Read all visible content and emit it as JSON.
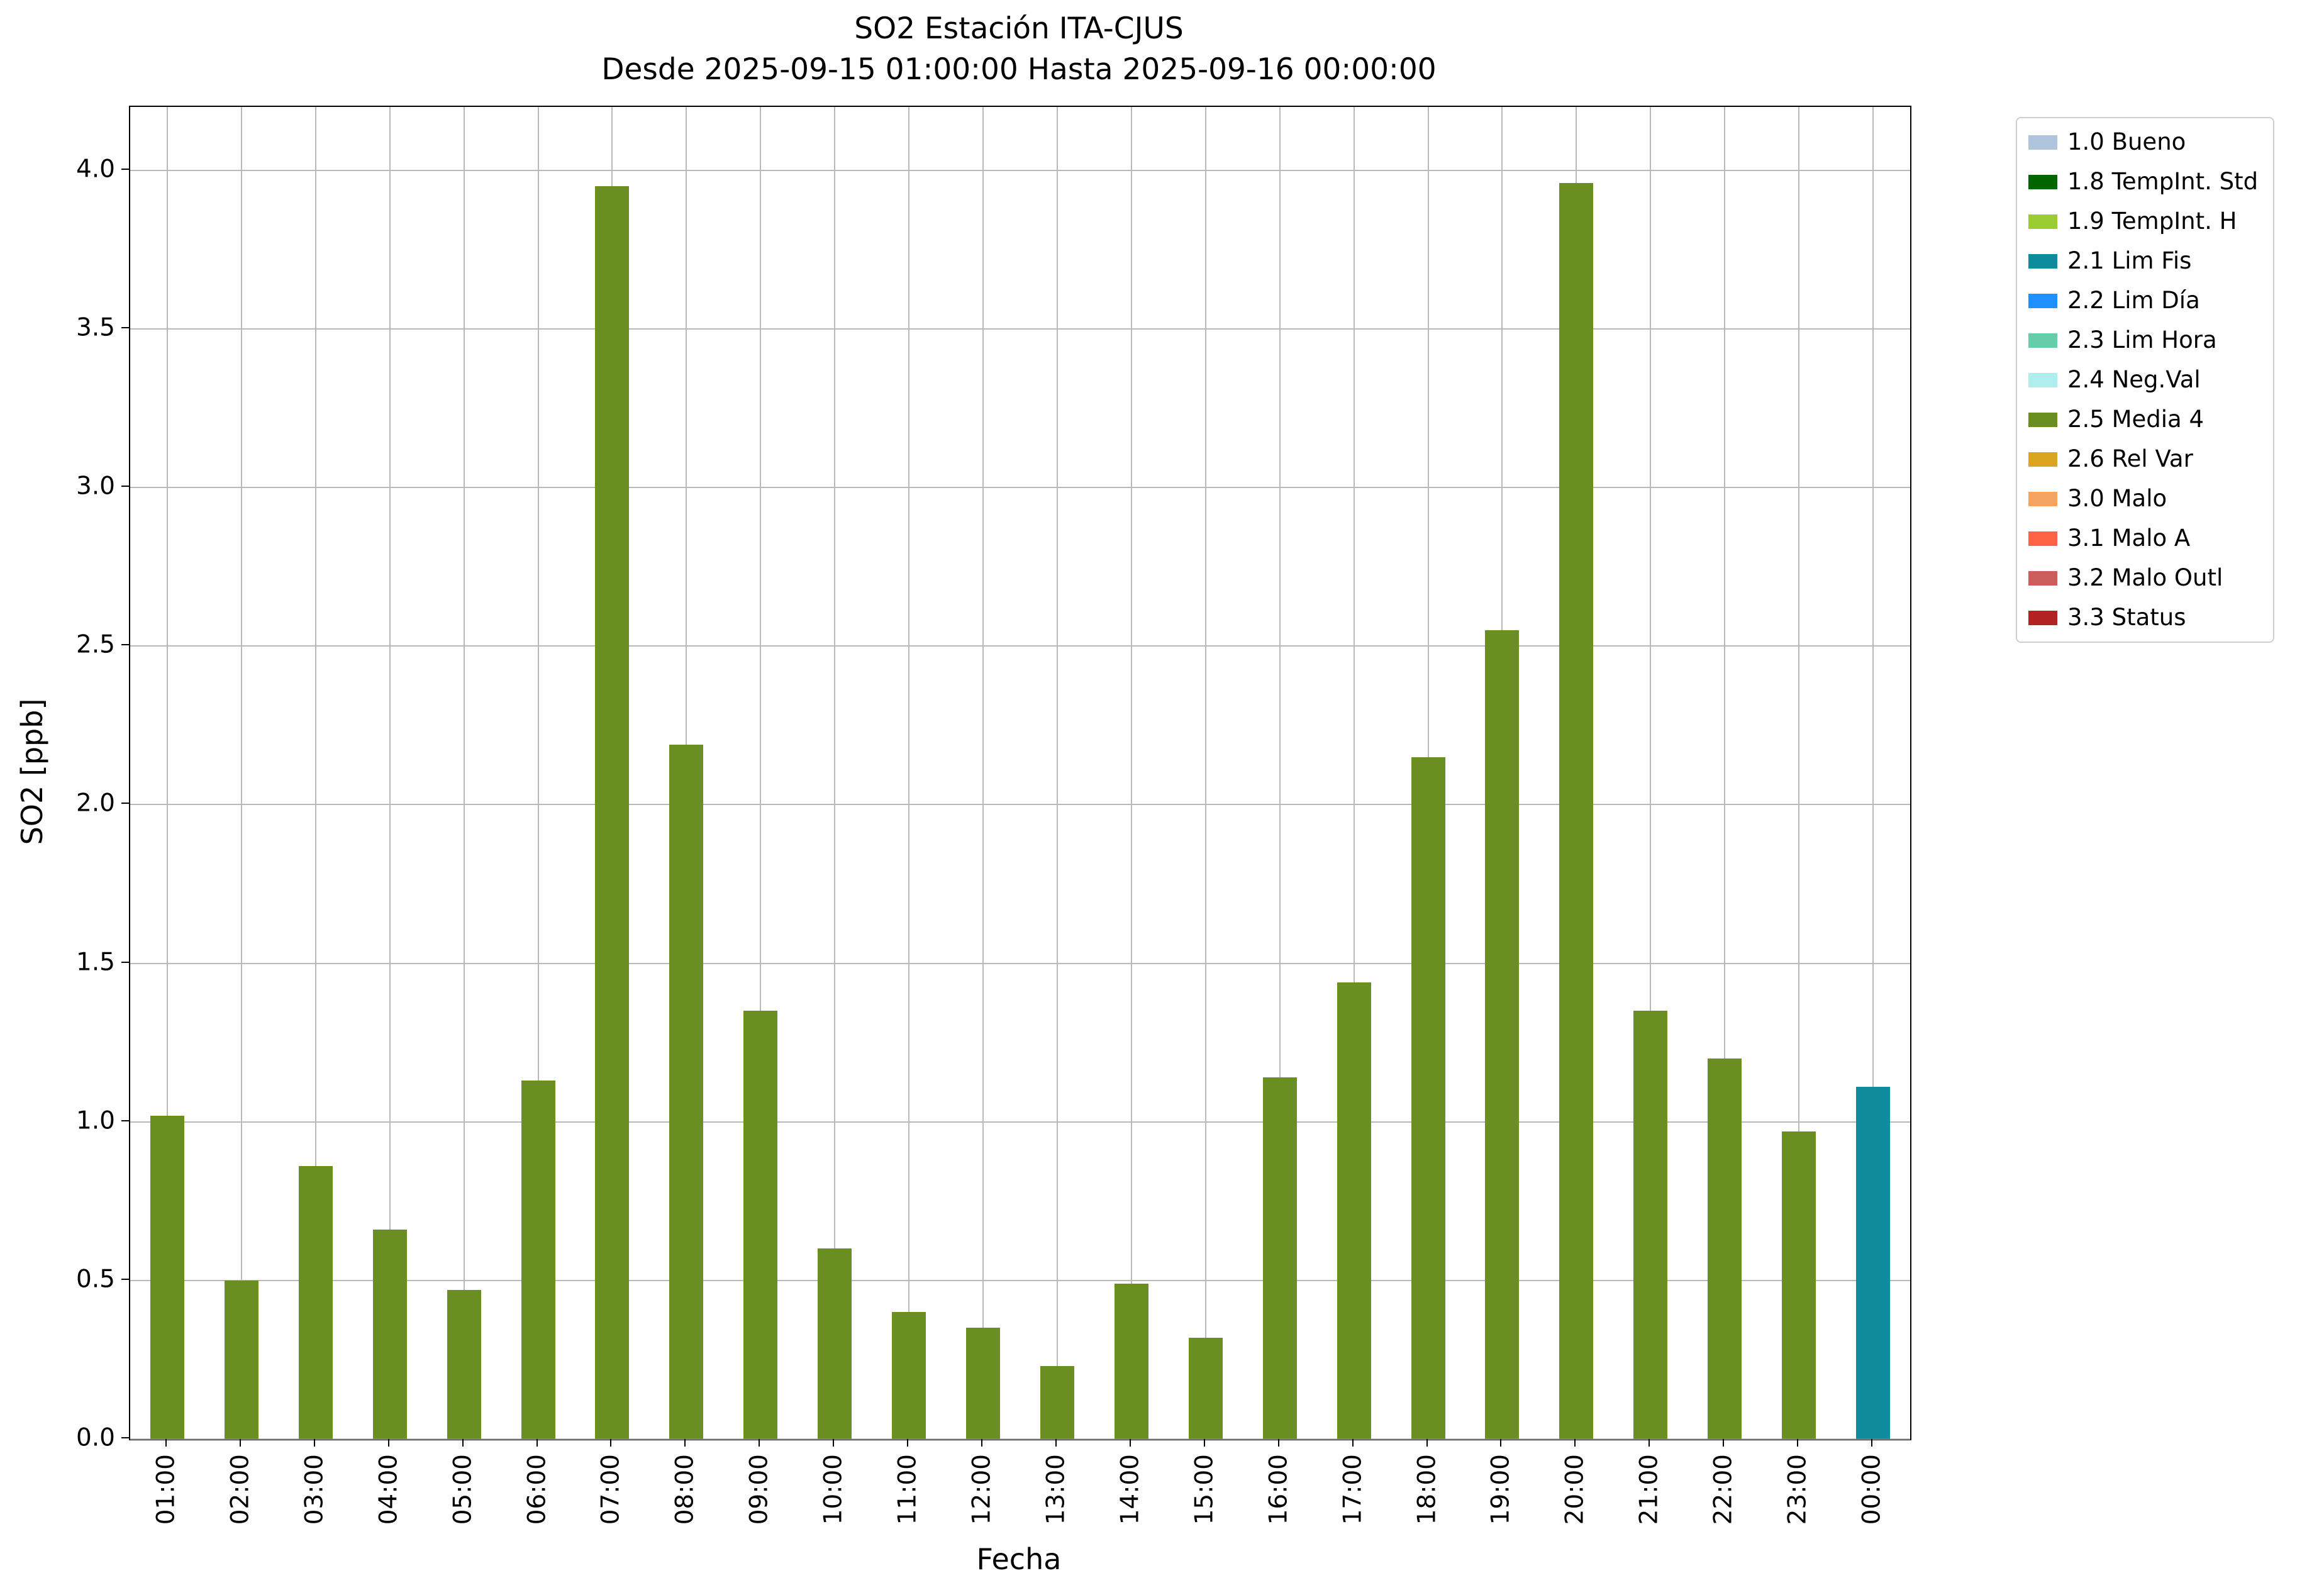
{
  "chart_data": {
    "type": "bar",
    "title": "SO2 Estación ITA-CJUS",
    "subtitle": "Desde 2025-09-15 01:00:00 Hasta 2025-09-16 00:00:00",
    "xlabel": "Fecha",
    "ylabel": "SO2 [ppb]",
    "ylim": [
      0,
      4.2
    ],
    "yticks": [
      0.0,
      0.5,
      1.0,
      1.5,
      2.0,
      2.5,
      3.0,
      3.5,
      4.0
    ],
    "grid": true,
    "grid_color": "#b9b9b9",
    "categories": [
      "01:00",
      "02:00",
      "03:00",
      "04:00",
      "05:00",
      "06:00",
      "07:00",
      "08:00",
      "09:00",
      "10:00",
      "11:00",
      "12:00",
      "13:00",
      "14:00",
      "15:00",
      "16:00",
      "17:00",
      "18:00",
      "19:00",
      "20:00",
      "21:00",
      "22:00",
      "23:00",
      "00:00"
    ],
    "values": [
      1.02,
      0.5,
      0.86,
      0.66,
      0.47,
      1.13,
      3.95,
      2.19,
      1.35,
      0.6,
      0.4,
      0.35,
      0.23,
      0.49,
      0.32,
      1.14,
      1.44,
      2.15,
      2.55,
      3.96,
      1.35,
      1.2,
      0.97,
      1.11
    ],
    "bar_status": [
      "2.5 Media 4",
      "2.5 Media 4",
      "2.5 Media 4",
      "2.5 Media 4",
      "2.5 Media 4",
      "2.5 Media 4",
      "2.5 Media 4",
      "2.5 Media 4",
      "2.5 Media 4",
      "2.5 Media 4",
      "2.5 Media 4",
      "2.5 Media 4",
      "2.5 Media 4",
      "2.5 Media 4",
      "2.5 Media 4",
      "2.5 Media 4",
      "2.5 Media 4",
      "2.5 Media 4",
      "2.5 Media 4",
      "2.5 Media 4",
      "2.5 Media 4",
      "2.5 Media 4",
      "2.5 Media 4",
      "2.1 Lim Fis"
    ],
    "status_colors": {
      "2.5 Media 4": "#6B8E23",
      "2.1 Lim Fis": "#0E8C9D"
    },
    "legend": {
      "position": "outside upper right",
      "entries": [
        {
          "label": "1.0 Bueno",
          "color": "#B0C4DE"
        },
        {
          "label": "1.8 TempInt. Std",
          "color": "#006400"
        },
        {
          "label": "1.9 TempInt. H",
          "color": "#9ACD32"
        },
        {
          "label": "2.1 Lim Fis",
          "color": "#0E8C9D"
        },
        {
          "label": "2.2 Lim Día",
          "color": "#1E90FF"
        },
        {
          "label": "2.3 Lim Hora",
          "color": "#66CDAA"
        },
        {
          "label": "2.4 Neg.Val",
          "color": "#AFEEEE"
        },
        {
          "label": "2.5 Media 4",
          "color": "#6B8E23"
        },
        {
          "label": "2.6 Rel Var",
          "color": "#DAA520"
        },
        {
          "label": "3.0 Malo",
          "color": "#F4A460"
        },
        {
          "label": "3.1 Malo A",
          "color": "#FF6347"
        },
        {
          "label": "3.2 Malo Outl",
          "color": "#CD5C5C"
        },
        {
          "label": "3.3 Status",
          "color": "#B22222"
        }
      ]
    }
  }
}
